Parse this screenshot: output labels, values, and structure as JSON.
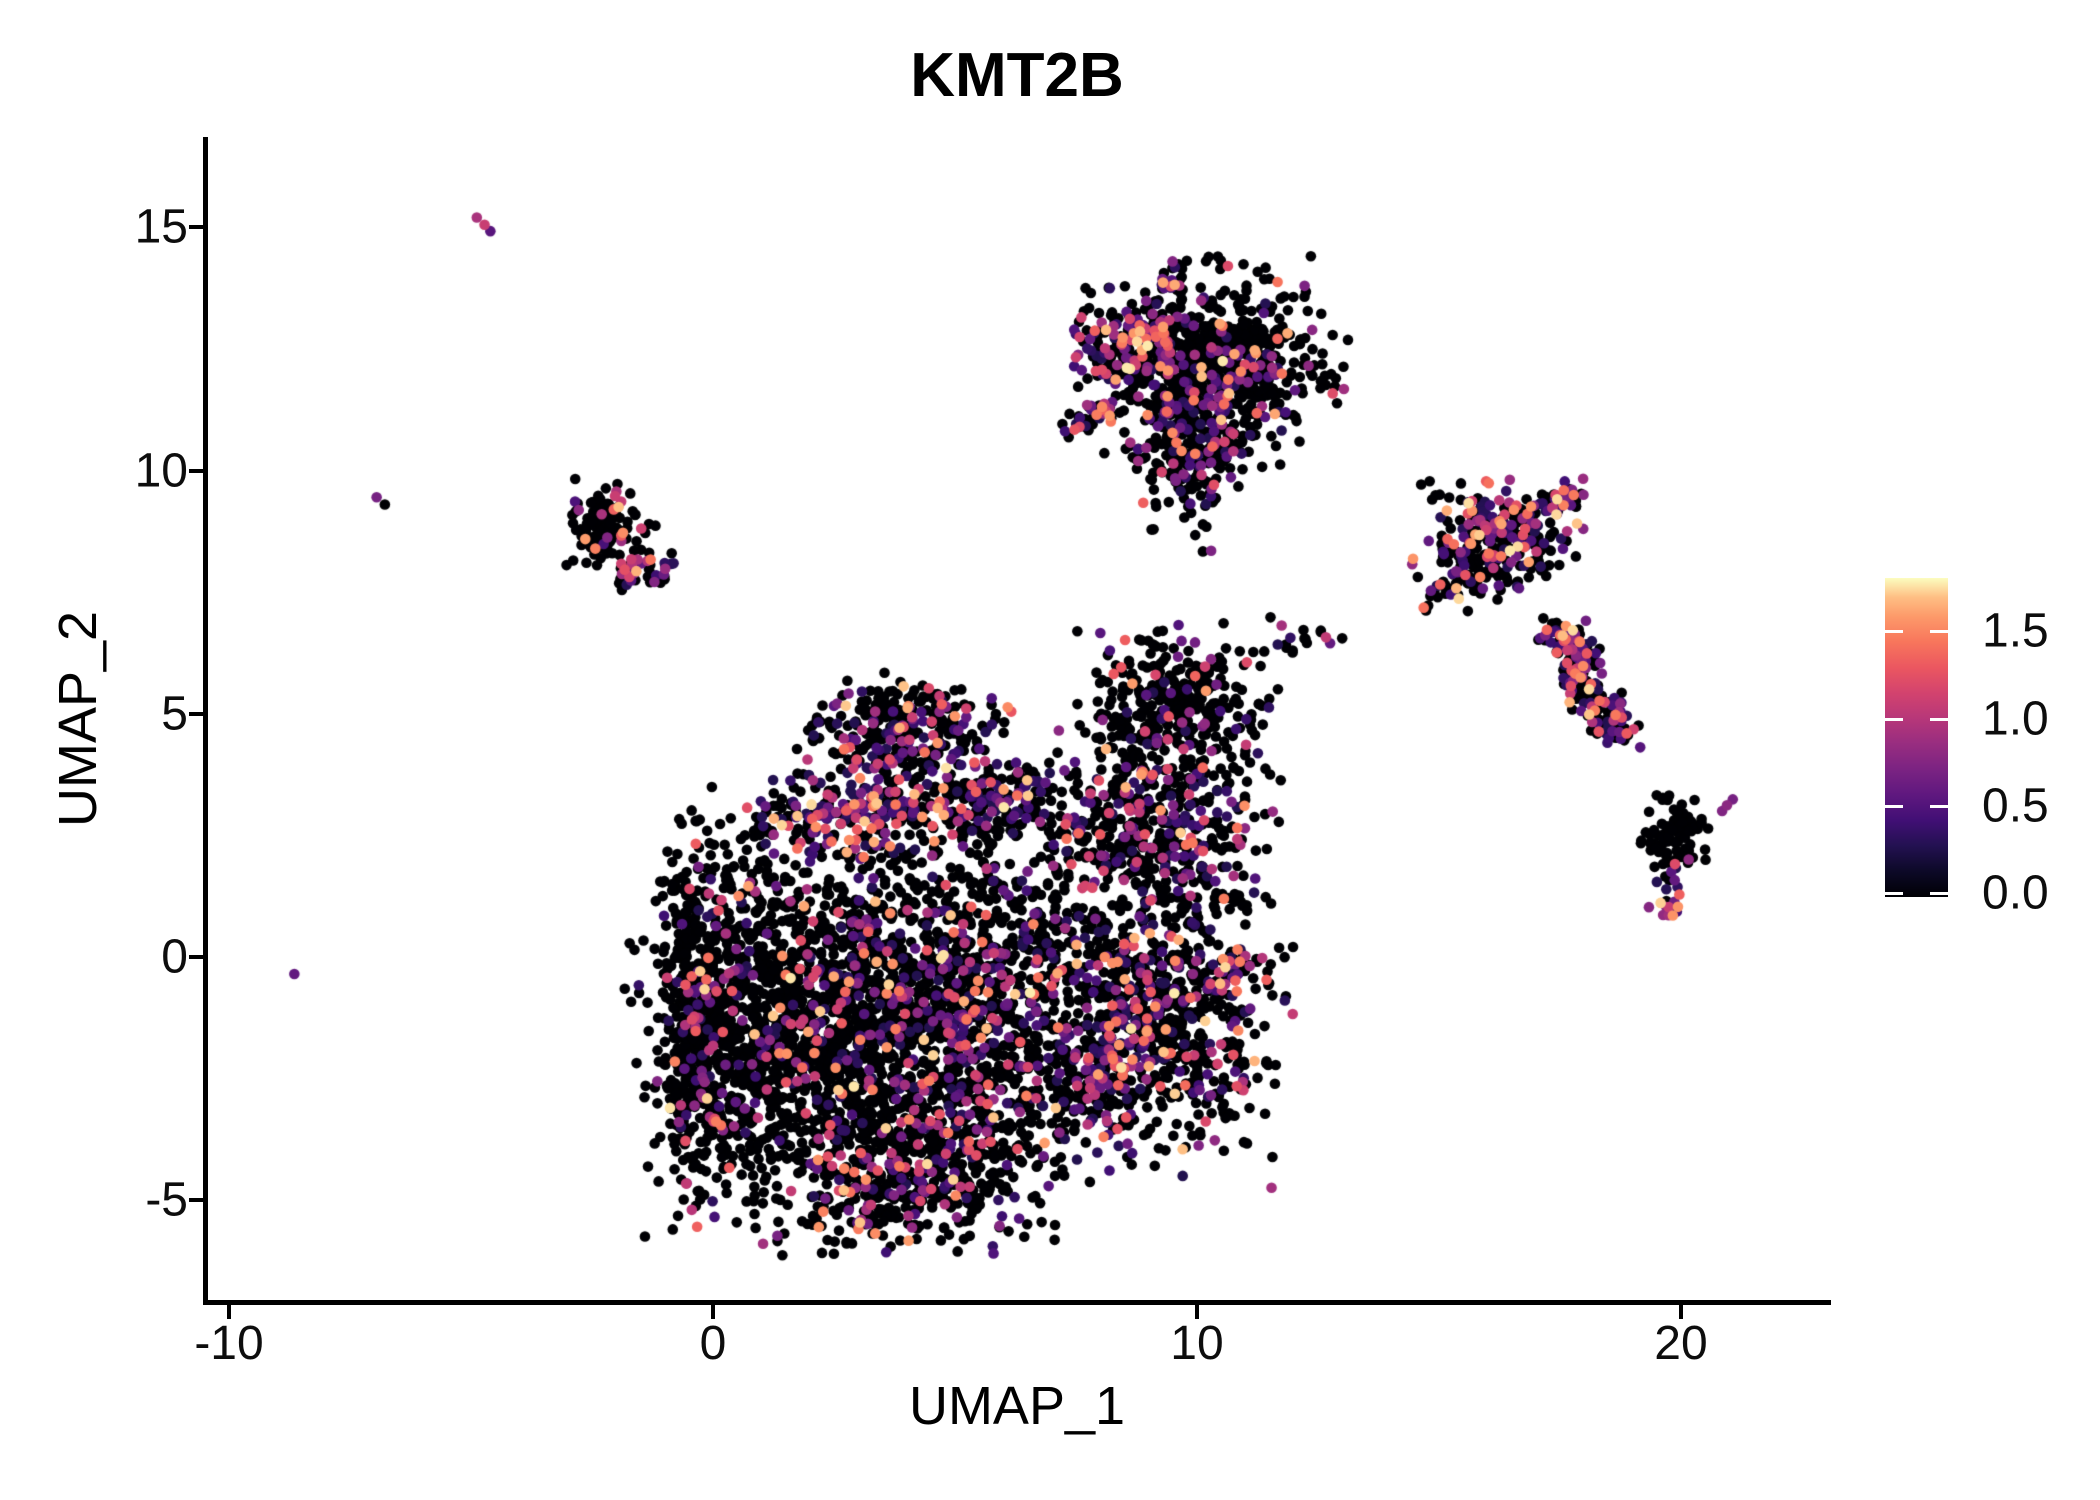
{
  "title": "KMT2B",
  "axes": {
    "x_label": "UMAP_1",
    "y_label": "UMAP_2",
    "x_ticks": [
      {
        "label": "-10",
        "value": -10
      },
      {
        "label": "0",
        "value": 0
      },
      {
        "label": "10",
        "value": 10
      },
      {
        "label": "20",
        "value": 20
      }
    ],
    "y_ticks": [
      {
        "label": "-5",
        "value": -5
      },
      {
        "label": "0",
        "value": 0
      },
      {
        "label": "5",
        "value": 5
      },
      {
        "label": "10",
        "value": 10
      },
      {
        "label": "15",
        "value": 15
      }
    ]
  },
  "legend": {
    "ticks": [
      {
        "label": "1.5",
        "value": 1.5
      },
      {
        "label": "1.0",
        "value": 1.0
      },
      {
        "label": "0.5",
        "value": 0.5
      },
      {
        "label": "0.0",
        "value": 0.0
      }
    ]
  },
  "chart_data": {
    "type": "scatter",
    "title": "KMT2B",
    "xlabel": "UMAP_1",
    "ylabel": "UMAP_2",
    "x_range": [
      -10.5,
      23.1
    ],
    "y_range": [
      -7.1,
      16.85
    ],
    "x_axis_ticks": [
      -10,
      0,
      10,
      20
    ],
    "y_axis_ticks": [
      -5,
      0,
      5,
      10,
      15
    ],
    "grid": false,
    "legend_position": "right",
    "value_domain": [
      0,
      1.81
    ],
    "colormap": {
      "name": "magma",
      "stops": [
        [
          0.0,
          "#000004"
        ],
        [
          0.08,
          "#0c0927"
        ],
        [
          0.16,
          "#231151"
        ],
        [
          0.24,
          "#410f75"
        ],
        [
          0.32,
          "#5f187f"
        ],
        [
          0.4,
          "#7b2382"
        ],
        [
          0.48,
          "#982d80"
        ],
        [
          0.56,
          "#b73779"
        ],
        [
          0.64,
          "#d3436e"
        ],
        [
          0.72,
          "#eb5760"
        ],
        [
          0.8,
          "#f8765c"
        ],
        [
          0.88,
          "#fd9a6a"
        ],
        [
          0.94,
          "#febf84"
        ],
        [
          1.0,
          "#fcfdbf"
        ]
      ]
    },
    "clusters": [
      {
        "name": "main-left-rim",
        "kind": "gauss",
        "cx": -0.35,
        "cy": -1.2,
        "sx": 0.38,
        "sy": 1.7,
        "n": 430,
        "colored_frac": 0.13,
        "vpow": 1.3
      },
      {
        "name": "main-left-body",
        "kind": "gauss",
        "cx": 0.9,
        "cy": -1.2,
        "sx": 1.05,
        "sy": 1.85,
        "n": 780,
        "colored_frac": 0.12,
        "vpow": 1.5
      },
      {
        "name": "main-mid",
        "kind": "gauss",
        "cx": 3.1,
        "cy": -1.5,
        "sx": 1.35,
        "sy": 1.8,
        "n": 1050,
        "colored_frac": 0.16,
        "vpow": 2.0
      },
      {
        "name": "main-right",
        "kind": "gauss",
        "cx": 5.6,
        "cy": -0.9,
        "sx": 1.25,
        "sy": 1.95,
        "n": 980,
        "colored_frac": 0.27,
        "vpow": 2.0
      },
      {
        "name": "main-bottom",
        "kind": "gauss",
        "cx": 4.1,
        "cy": -4.4,
        "sx": 1.15,
        "sy": 0.7,
        "n": 380,
        "colored_frac": 0.22,
        "vpow": 1.8
      },
      {
        "name": "main-top-band",
        "kind": "strip",
        "x1": 1.3,
        "y1": 2.85,
        "x2": 6.8,
        "y2": 3.3,
        "sw": 0.38,
        "n": 390,
        "colored_frac": 0.5,
        "vpow": 2.2
      },
      {
        "name": "cap",
        "kind": "gauss",
        "cx": 3.95,
        "cy": 4.6,
        "sx": 0.95,
        "sy": 0.5,
        "n": 300,
        "colored_frac": 0.32,
        "vpow": 2.0
      },
      {
        "name": "right-lobe",
        "kind": "gauss",
        "cx": 9.2,
        "cy": -1.4,
        "sx": 1.15,
        "sy": 1.3,
        "n": 640,
        "colored_frac": 0.3,
        "vpow": 1.9
      },
      {
        "name": "right-lobe-left-edge",
        "kind": "strip",
        "x1": 7.9,
        "y1": -3.3,
        "x2": 8.55,
        "y2": 0.4,
        "sw": 0.3,
        "n": 140,
        "colored_frac": 0.55,
        "vpow": 2.2
      },
      {
        "name": "right-lobe-arm",
        "kind": "strip",
        "x1": 10.3,
        "y1": -0.45,
        "x2": 11.15,
        "y2": 0.0,
        "sw": 0.18,
        "n": 45,
        "colored_frac": 0.5,
        "vpow": 1.3
      },
      {
        "name": "mid-right-lobe",
        "kind": "gauss",
        "cx": 9.1,
        "cy": 2.6,
        "sx": 1.05,
        "sy": 1.05,
        "n": 500,
        "colored_frac": 0.3,
        "vpow": 2.0
      },
      {
        "name": "ne-lobe",
        "kind": "gauss",
        "cx": 9.6,
        "cy": 5.2,
        "sx": 0.85,
        "sy": 0.7,
        "n": 310,
        "colored_frac": 0.13,
        "vpow": 2.0
      },
      {
        "name": "top-cluster-main",
        "kind": "gauss",
        "cx": 10.4,
        "cy": 12.2,
        "sx": 1.05,
        "sy": 0.85,
        "n": 660,
        "colored_frac": 0.17,
        "vpow": 1.8
      },
      {
        "name": "top-cluster-left",
        "kind": "gauss",
        "cx": 8.55,
        "cy": 12.7,
        "sx": 0.55,
        "sy": 0.45,
        "n": 175,
        "colored_frac": 0.55,
        "vpow": 2.0
      },
      {
        "name": "top-cluster-tail",
        "kind": "gauss",
        "cx": 9.9,
        "cy": 10.45,
        "sx": 0.6,
        "sy": 0.85,
        "n": 240,
        "colored_frac": 0.3,
        "vpow": 2.0
      },
      {
        "name": "top-cluster-stem",
        "kind": "strip",
        "x1": 9.35,
        "y1": 13.55,
        "x2": 9.6,
        "y2": 14.35,
        "sw": 0.12,
        "n": 22,
        "colored_frac": 0.5,
        "vpow": 2.0
      },
      {
        "name": "top-cluster-diag",
        "kind": "strip",
        "x1": 7.45,
        "y1": 10.9,
        "x2": 8.2,
        "y2": 11.35,
        "sw": 0.14,
        "n": 40,
        "colored_frac": 0.6,
        "vpow": 1.5
      },
      {
        "name": "left-small",
        "kind": "gauss",
        "cx": -2.15,
        "cy": 8.8,
        "sx": 0.42,
        "sy": 0.4,
        "n": 120,
        "colored_frac": 0.1,
        "vpow": 1.2
      },
      {
        "name": "left-small-lower",
        "kind": "gauss",
        "cx": -1.45,
        "cy": 7.9,
        "sx": 0.3,
        "sy": 0.2,
        "n": 40,
        "colored_frac": 0.55,
        "vpow": 1.8
      },
      {
        "name": "right-cluster-a",
        "kind": "gauss",
        "cx": 16.2,
        "cy": 8.6,
        "sx": 0.7,
        "sy": 0.5,
        "n": 270,
        "colored_frac": 0.45,
        "vpow": 1.8
      },
      {
        "name": "right-cluster-a-arm",
        "kind": "strip",
        "x1": 16.8,
        "y1": 9.0,
        "x2": 17.9,
        "y2": 9.55,
        "sw": 0.15,
        "n": 60,
        "colored_frac": 0.45,
        "vpow": 1.8
      },
      {
        "name": "right-cluster-a-below",
        "kind": "gauss",
        "cx": 15.55,
        "cy": 7.85,
        "sx": 0.4,
        "sy": 0.3,
        "n": 40,
        "colored_frac": 0.2,
        "vpow": 2.0
      },
      {
        "name": "right-cluster-b-upper",
        "kind": "strip",
        "x1": 17.45,
        "y1": 6.75,
        "x2": 18.15,
        "y2": 5.9,
        "sw": 0.2,
        "n": 110,
        "colored_frac": 0.5,
        "vpow": 2.0
      },
      {
        "name": "right-cluster-b-lower",
        "kind": "strip",
        "x1": 17.8,
        "y1": 5.75,
        "x2": 18.85,
        "y2": 4.55,
        "sw": 0.22,
        "n": 120,
        "colored_frac": 0.5,
        "vpow": 2.0
      },
      {
        "name": "bottom-right-black",
        "kind": "gauss",
        "cx": 19.9,
        "cy": 2.45,
        "sx": 0.38,
        "sy": 0.4,
        "n": 80,
        "colored_frac": 0.08,
        "vpow": 2.0
      },
      {
        "name": "bottom-right-mini",
        "kind": "gauss",
        "cx": 19.75,
        "cy": 1.15,
        "sx": 0.18,
        "sy": 0.22,
        "n": 14,
        "colored_frac": 0.85,
        "vpow": 1.3
      },
      {
        "name": "connector-1",
        "kind": "strip",
        "x1": 11.3,
        "y1": 6.3,
        "x2": 12.6,
        "y2": 6.6,
        "sw": 0.12,
        "n": 14,
        "colored_frac": 0.25,
        "vpow": 1.8
      },
      {
        "name": "connector-2",
        "kind": "strip",
        "x1": 14.6,
        "y1": 7.3,
        "x2": 15.3,
        "y2": 7.6,
        "sw": 0.15,
        "n": 12,
        "colored_frac": 0.3,
        "vpow": 1.8
      }
    ],
    "extra_points": [
      [
        -6.95,
        9.45,
        0.7
      ],
      [
        -6.78,
        9.3,
        0
      ],
      [
        -4.88,
        15.2,
        0.95
      ],
      [
        -4.72,
        15.05,
        1.1
      ],
      [
        -4.6,
        14.92,
        0.55
      ],
      [
        -8.65,
        -0.35,
        0.6
      ],
      [
        20.85,
        3.0,
        0.75
      ],
      [
        20.95,
        3.12,
        0.8
      ],
      [
        21.07,
        3.24,
        0.7
      ],
      [
        19.8,
        1.75,
        0.55
      ],
      [
        19.87,
        1.58,
        0.6
      ],
      [
        -2.05,
        9.2,
        1.35
      ],
      [
        -1.95,
        9.25,
        1.7
      ],
      [
        -2.3,
        9.1,
        0.95
      ],
      [
        13.0,
        6.55,
        0
      ],
      [
        12.2,
        6.72,
        0
      ],
      [
        12.75,
        6.45,
        0.6
      ]
    ]
  }
}
